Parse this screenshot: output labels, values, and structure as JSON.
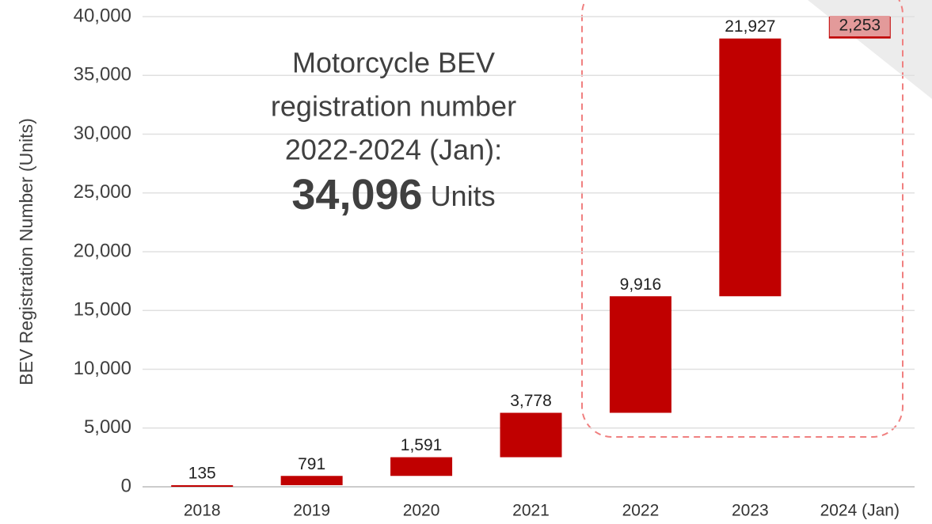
{
  "chart_data": {
    "type": "waterfall",
    "y_axis_label": "BEV Registration Number (Units)",
    "categories": [
      "2018",
      "2019",
      "2020",
      "2021",
      "2022",
      "2023",
      "2024 (Jan)"
    ],
    "values": [
      135,
      791,
      1591,
      3778,
      9916,
      21927,
      2253
    ],
    "value_labels": [
      "135",
      "791",
      "1,591",
      "3,778",
      "9,916",
      "21,927",
      "2,253"
    ],
    "color": "#c00000",
    "highlight_label_color": "#e39a9a",
    "ylim": [
      0,
      40000
    ],
    "yticks": [
      0,
      {
        "value": 5000,
        "label": "5,000"
      },
      {
        "value": 10000,
        "label": "10,000"
      },
      {
        "value": 15000,
        "label": "15,000"
      },
      {
        "value": 20000,
        "label": "20,000"
      },
      {
        "value": 25000,
        "label": "25,000"
      },
      {
        "value": 30000,
        "label": "30,000"
      },
      {
        "value": 35000,
        "label": "35,000"
      },
      {
        "value": 40000,
        "label": "40,000"
      }
    ],
    "grid": true,
    "annotation": {
      "lines": [
        "Motorcycle BEV",
        "registration number",
        "2022-2024 (Jan):"
      ],
      "total": "34,096",
      "unit": "Units"
    }
  }
}
